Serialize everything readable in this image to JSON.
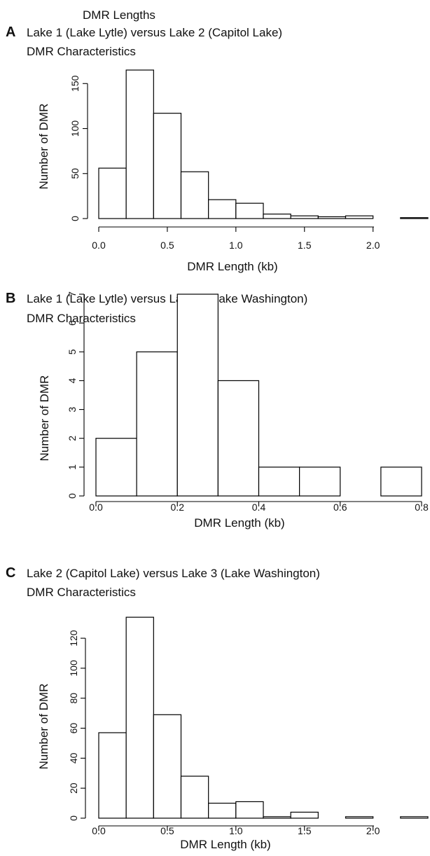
{
  "figure_title": "DMR Lengths",
  "chart_data": [
    {
      "type": "bar",
      "panel": "A",
      "title": "Lake 1 (Lake Lytle) versus Lake 2 (Capitol Lake)",
      "subtitle": "DMR Characteristics",
      "xlabel": "DMR Length (kb)",
      "ylabel": "Number of DMR",
      "xlim": [
        0,
        2.4
      ],
      "ylim": [
        0,
        165
      ],
      "bin_edges": [
        0.0,
        0.2,
        0.4,
        0.6,
        0.8,
        1.0,
        1.2,
        1.4,
        1.6,
        1.8,
        2.0,
        2.2,
        2.4
      ],
      "values": [
        56,
        165,
        117,
        52,
        21,
        17,
        5,
        3,
        2,
        3,
        0,
        1
      ],
      "xticks": [
        0,
        0.5,
        1.0,
        1.5,
        2.0
      ],
      "xtick_labels": [
        "0.0",
        "0.5",
        "1.0",
        "1.5",
        "2.0"
      ],
      "yticks": [
        0,
        50,
        100,
        150
      ],
      "ytick_labels": [
        "0",
        "50",
        "100",
        "150"
      ],
      "grid": false
    },
    {
      "type": "bar",
      "panel": "B",
      "title": "Lake 1 (Lake Lytle) versus Lake 3 (Lake Washington)",
      "subtitle": "DMR Characteristics",
      "xlabel": "DMR Length (kb)",
      "ylabel": "Number of DMR",
      "xlim": [
        0,
        0.8
      ],
      "ylim": [
        0,
        7
      ],
      "bin_edges": [
        0.0,
        0.1,
        0.2,
        0.3,
        0.4,
        0.5,
        0.6,
        0.7,
        0.8
      ],
      "values": [
        2,
        5,
        7,
        4,
        1,
        1,
        0,
        1
      ],
      "xticks": [
        0,
        0.2,
        0.4,
        0.6,
        0.8
      ],
      "xtick_labels": [
        "0.0",
        "0.2",
        "0.4",
        "0.6",
        "0.8"
      ],
      "yticks": [
        0,
        1,
        2,
        3,
        4,
        5,
        6,
        7
      ],
      "ytick_labels": [
        "0",
        "1",
        "2",
        "3",
        "4",
        "5",
        "6",
        "7"
      ],
      "grid": false
    },
    {
      "type": "bar",
      "panel": "C",
      "title": "Lake 2 (Capitol Lake) versus Lake 3 (Lake Washington)",
      "subtitle": "DMR Characteristics",
      "xlabel": "DMR Length (kb)",
      "ylabel": "Number of DMR",
      "xlim": [
        0,
        2.4
      ],
      "ylim": [
        0,
        135
      ],
      "bin_edges": [
        0.0,
        0.2,
        0.4,
        0.6,
        0.8,
        1.0,
        1.2,
        1.4,
        1.6,
        1.8,
        2.0,
        2.2,
        2.4
      ],
      "values": [
        57,
        134,
        69,
        28,
        10,
        11,
        1,
        4,
        0,
        1,
        0,
        1
      ],
      "xticks": [
        0,
        0.5,
        1.0,
        1.5,
        2.0
      ],
      "xtick_labels": [
        "0.0",
        "0.5",
        "1.0",
        "1.5",
        "2.0"
      ],
      "yticks": [
        0,
        20,
        40,
        60,
        80,
        100,
        120
      ],
      "ytick_labels": [
        "0",
        "20",
        "40",
        "60",
        "80",
        "100",
        "120"
      ],
      "grid": false
    }
  ]
}
